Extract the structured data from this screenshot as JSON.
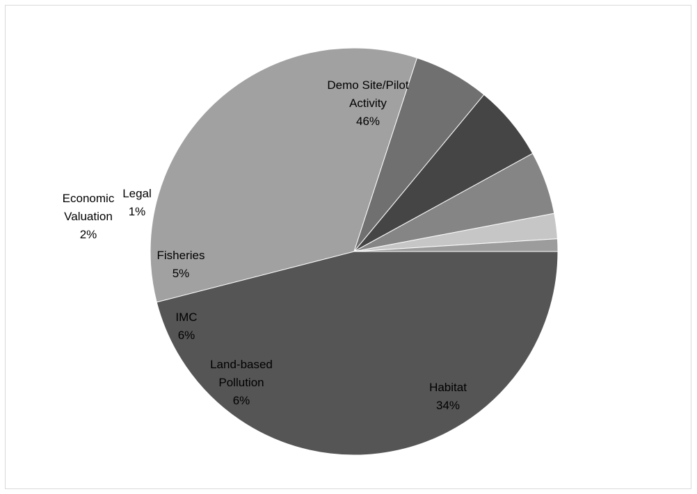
{
  "chart_data": {
    "type": "pie",
    "title": "",
    "slices": [
      {
        "name_lines": [
          "Demo Site/Pilot",
          "Activity"
        ],
        "pct_label": "46%",
        "value": 46,
        "color": "#555555"
      },
      {
        "name_lines": [
          "Habitat"
        ],
        "pct_label": "34%",
        "value": 34,
        "color": "#a1a1a1"
      },
      {
        "name_lines": [
          "Land-based",
          "Pollution"
        ],
        "pct_label": "6%",
        "value": 6,
        "color": "#707070"
      },
      {
        "name_lines": [
          "IMC"
        ],
        "pct_label": "6%",
        "value": 6,
        "color": "#454545"
      },
      {
        "name_lines": [
          "Fisheries"
        ],
        "pct_label": "5%",
        "value": 5,
        "color": "#858585"
      },
      {
        "name_lines": [
          "Economic",
          "Valuation"
        ],
        "pct_label": "2%",
        "value": 2,
        "color": "#c6c6c6"
      },
      {
        "name_lines": [
          "Legal"
        ],
        "pct_label": "1%",
        "value": 1,
        "color": "#9c9c9c"
      }
    ],
    "start_angle_deg": 0,
    "direction": "clockwise",
    "legend": "none"
  }
}
